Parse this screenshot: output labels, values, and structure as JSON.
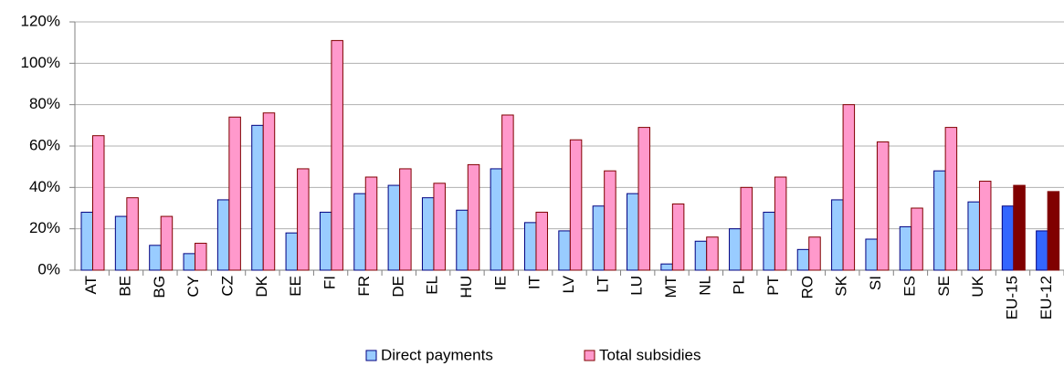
{
  "chart_data": {
    "type": "bar",
    "categories": [
      "AT",
      "BE",
      "BG",
      "CY",
      "CZ",
      "DK",
      "EE",
      "FI",
      "FR",
      "DE",
      "EL",
      "HU",
      "IE",
      "IT",
      "LV",
      "LT",
      "LU",
      "MT",
      "NL",
      "PL",
      "PT",
      "RO",
      "SK",
      "SI",
      "ES",
      "SE",
      "UK",
      "EU-15",
      "EU-12"
    ],
    "series": [
      {
        "name": "Direct payments",
        "color": "#99ccff",
        "stroke": "#000080",
        "colors": [
          "#99ccff",
          "#99ccff",
          "#99ccff",
          "#99ccff",
          "#99ccff",
          "#99ccff",
          "#99ccff",
          "#99ccff",
          "#99ccff",
          "#99ccff",
          "#99ccff",
          "#99ccff",
          "#99ccff",
          "#99ccff",
          "#99ccff",
          "#99ccff",
          "#99ccff",
          "#99ccff",
          "#99ccff",
          "#99ccff",
          "#99ccff",
          "#99ccff",
          "#99ccff",
          "#99ccff",
          "#99ccff",
          "#99ccff",
          "#99ccff",
          "#3366ff",
          "#3366ff"
        ],
        "values": [
          28,
          26,
          12,
          8,
          34,
          70,
          18,
          28,
          37,
          41,
          35,
          29,
          49,
          23,
          19,
          31,
          37,
          3,
          14,
          20,
          28,
          10,
          34,
          15,
          21,
          48,
          33,
          31,
          19
        ]
      },
      {
        "name": "Total subsidies",
        "color": "#ff99cc",
        "stroke": "#800000",
        "colors": [
          "#ff99cc",
          "#ff99cc",
          "#ff99cc",
          "#ff99cc",
          "#ff99cc",
          "#ff99cc",
          "#ff99cc",
          "#ff99cc",
          "#ff99cc",
          "#ff99cc",
          "#ff99cc",
          "#ff99cc",
          "#ff99cc",
          "#ff99cc",
          "#ff99cc",
          "#ff99cc",
          "#ff99cc",
          "#ff99cc",
          "#ff99cc",
          "#ff99cc",
          "#ff99cc",
          "#ff99cc",
          "#ff99cc",
          "#ff99cc",
          "#ff99cc",
          "#ff99cc",
          "#ff99cc",
          "#800000",
          "#800000"
        ],
        "values": [
          65,
          35,
          26,
          13,
          74,
          76,
          49,
          111,
          45,
          49,
          42,
          51,
          75,
          28,
          63,
          48,
          69,
          32,
          16,
          40,
          45,
          16,
          80,
          62,
          30,
          69,
          43,
          41,
          38
        ]
      }
    ],
    "ylim": [
      0,
      120
    ],
    "yticks": [
      {
        "value": 0,
        "label": "0%"
      },
      {
        "value": 20,
        "label": "20%"
      },
      {
        "value": 40,
        "label": "40%"
      },
      {
        "value": 60,
        "label": "60%"
      },
      {
        "value": 80,
        "label": "80%"
      },
      {
        "value": 100,
        "label": "100%"
      },
      {
        "value": 120,
        "label": "120%"
      }
    ],
    "grid": true,
    "legend": "bottom"
  }
}
